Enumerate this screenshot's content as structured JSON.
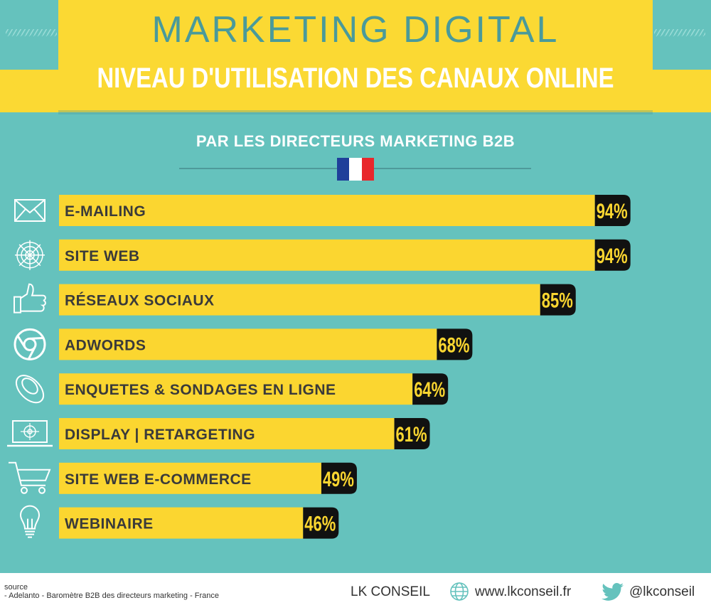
{
  "header": {
    "title": "MARKETING DIGITAL",
    "subtitle": "NIVEAU D'UTILISATION DES CANAUX ONLINE",
    "tagline": "PAR LES DIRECTEURS MARKETING B2B",
    "flag_colors": [
      "#1f3f9a",
      "#ffffff",
      "#e8272c"
    ]
  },
  "colors": {
    "background": "#65c2bd",
    "banner": "#fbd933",
    "bar": "#fbd630",
    "value_badge": "#111111",
    "value_text": "#fbd630",
    "icon": "#ffffff"
  },
  "chart_data": {
    "type": "bar",
    "orientation": "horizontal",
    "categories": [
      "E-MAILING",
      "SITE WEB",
      "RÉSEAUX SOCIAUX",
      "ADWORDS",
      "ENQUETES & SONDAGES EN LIGNE",
      "DISPLAY | RETARGETING",
      "SITE WEB E-COMMERCE",
      "WEBINAIRE"
    ],
    "values": [
      94,
      94,
      85,
      68,
      64,
      61,
      49,
      46
    ],
    "value_labels": [
      "94%",
      "94%",
      "85%",
      "68%",
      "64%",
      "61%",
      "49%",
      "46%"
    ],
    "icons": [
      "envelope-icon",
      "spider-web-icon",
      "thumbs-up-icon",
      "chrome-icon",
      "rugby-ball-icon",
      "monitor-target-icon",
      "shopping-cart-icon",
      "lightbulb-icon"
    ],
    "xlim": [
      0,
      100
    ],
    "grid": false
  },
  "footer": {
    "source_label": "source",
    "source_text": "- Adelanto - Baromètre B2B des directeurs marketing - France",
    "brand": "LK CONSEIL",
    "website": "www.lkconseil.fr",
    "twitter": "@lkconseil"
  }
}
